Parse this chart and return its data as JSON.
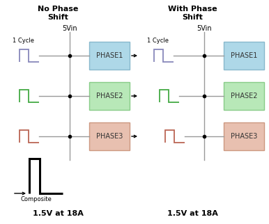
{
  "title_left": "No Phase\nShift",
  "title_right": "With Phase\nShift",
  "vin_label": "5Vin",
  "cycle_label": "1 Cycle",
  "composite_label": "Composite",
  "bottom_label": "1.5V at 18A",
  "phase_labels": [
    "PHASE1",
    "PHASE2",
    "PHASE3"
  ],
  "phase_colors_face": [
    "#aed8e8",
    "#b8e8b8",
    "#e8c0b0"
  ],
  "phase_colors_edge": [
    "#88b8cc",
    "#88cc88",
    "#cc9880"
  ],
  "wave_colors": [
    "#8888bb",
    "#44aa44",
    "#bb6655"
  ],
  "black": "#000000",
  "gray": "#999999",
  "bg": "#ffffff",
  "figsize": [
    3.86,
    3.22
  ],
  "dpi": 100
}
